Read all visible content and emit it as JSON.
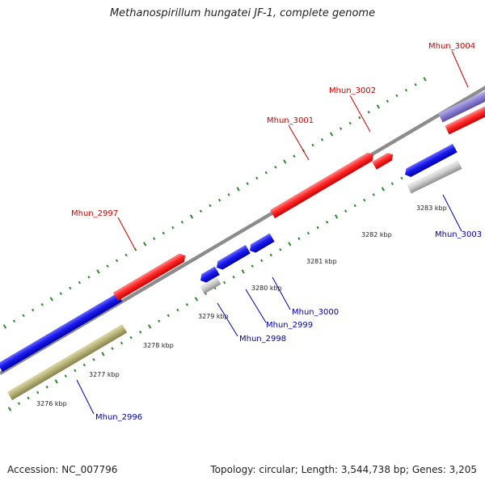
{
  "title": "Methanospirillum hungatei JF-1, complete genome",
  "footer": {
    "accession": "Accession: NC_007796",
    "summary": "Topology: circular; Length: 3,544,738 bp; Genes: 3,205"
  },
  "colors": {
    "forward_gene": "#ff2a2a",
    "reverse_gene": "#1a1aee",
    "reverse_rna": "#c8c8c8",
    "reverse_cds_band": "#b8b47a",
    "forward_band": "#8a7fd0",
    "backbone": "#8c8c8c",
    "tick": "#2a8a2a",
    "forward_label": "#cc0000",
    "reverse_label": "#0000aa"
  },
  "scale_labels": [
    "3276 kbp",
    "3277 kbp",
    "3278 kbp",
    "3279 kbp",
    "3280 kbp",
    "3281 kbp",
    "3282 kbp",
    "3283 kbp"
  ],
  "genes": [
    {
      "name": "Mhun_2996",
      "strand": "reverse"
    },
    {
      "name": "Mhun_2997",
      "strand": "forward"
    },
    {
      "name": "Mhun_2998",
      "strand": "reverse"
    },
    {
      "name": "Mhun_2999",
      "strand": "reverse"
    },
    {
      "name": "Mhun_3000",
      "strand": "reverse"
    },
    {
      "name": "Mhun_3001",
      "strand": "forward"
    },
    {
      "name": "Mhun_3002",
      "strand": "forward"
    },
    {
      "name": "Mhun_3003",
      "strand": "reverse"
    },
    {
      "name": "Mhun_3004",
      "strand": "forward"
    }
  ]
}
